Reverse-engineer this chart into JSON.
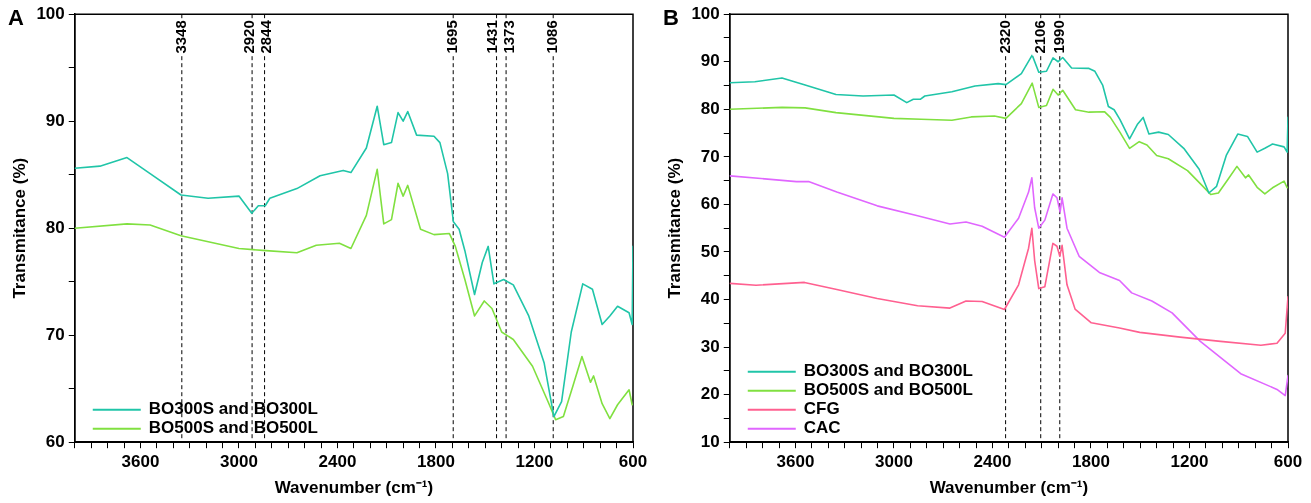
{
  "chart_data": [
    {
      "type": "line",
      "title": "A",
      "xlabel": "Wavenumber (cm⁻¹)",
      "ylabel": "Transmitance (%)",
      "xlim": [
        4000,
        600
      ],
      "ylim": [
        60,
        100
      ],
      "xticks": [
        {
          "value": 4000,
          "label": null
        },
        {
          "value": 3900,
          "label": null
        },
        {
          "value": 3800,
          "label": null
        },
        {
          "value": 3700,
          "label": null
        },
        3600,
        {
          "value": 3500,
          "label": null
        },
        {
          "value": 3400,
          "label": null
        },
        {
          "value": 3300,
          "label": null
        },
        {
          "value": 3200,
          "label": null
        },
        {
          "value": 3100,
          "label": null
        },
        3000,
        {
          "value": 2900,
          "label": null
        },
        {
          "value": 2800,
          "label": null
        },
        {
          "value": 2700,
          "label": null
        },
        {
          "value": 2600,
          "label": null
        },
        {
          "value": 2500,
          "label": null
        },
        2400,
        {
          "value": 2300,
          "label": null
        },
        {
          "value": 2200,
          "label": null
        },
        {
          "value": 2100,
          "label": null
        },
        {
          "value": 2000,
          "label": null
        },
        {
          "value": 1900,
          "label": null
        },
        1800,
        {
          "value": 1700,
          "label": null
        },
        {
          "value": 1600,
          "label": null
        },
        {
          "value": 1500,
          "label": null
        },
        {
          "value": 1400,
          "label": null
        },
        {
          "value": 1300,
          "label": null
        },
        1200,
        {
          "value": 1100,
          "label": null
        },
        {
          "value": 1000,
          "label": null
        },
        {
          "value": 900,
          "label": null
        },
        {
          "value": 800,
          "label": null
        },
        {
          "value": 700,
          "label": null
        },
        600
      ],
      "yticks": [
        60,
        {
          "value": 65,
          "label": null
        },
        70,
        {
          "value": 75,
          "label": null
        },
        80,
        {
          "value": 85,
          "label": null
        },
        90,
        {
          "value": 95,
          "label": null
        },
        100
      ],
      "grid": false,
      "legend": "bottom left",
      "marker": "none",
      "line_style": "solid",
      "series": [
        {
          "name": "BO300S and BO300L",
          "color": "#20c5a8",
          "x": [
            4000,
            3847,
            3682,
            3541,
            3353,
            3188,
            3000,
            2922,
            2882,
            2840,
            2812,
            2647,
            2506,
            2365,
            2318,
            2224,
            2158,
            2118,
            2071,
            2031,
            2000,
            1972,
            1918,
            1812,
            1776,
            1729,
            1694,
            1659,
            1624,
            1565,
            1518,
            1482,
            1447,
            1388,
            1329,
            1235,
            1141,
            1082,
            1035,
            976,
            906,
            847,
            788,
            741,
            694,
            624,
            605,
            600
          ],
          "values": [
            85.6,
            85.8,
            86.6,
            85.1,
            83.1,
            82.8,
            83.0,
            81.4,
            82.1,
            82.1,
            82.8,
            83.7,
            84.9,
            85.4,
            85.2,
            87.5,
            91.4,
            87.8,
            88.0,
            90.8,
            90.0,
            90.9,
            88.7,
            88.6,
            88.0,
            85.1,
            80.6,
            79.9,
            77.9,
            73.8,
            76.8,
            78.3,
            74.8,
            75.2,
            74.7,
            71.8,
            67.4,
            62.4,
            63.8,
            70.3,
            74.8,
            74.3,
            71.0,
            71.8,
            72.7,
            72.1,
            71.0,
            78.3
          ]
        },
        {
          "name": "BO500S and BO500L",
          "color": "#80e040",
          "x": [
            4000,
            3682,
            3541,
            3353,
            3000,
            2835,
            2647,
            2529,
            2388,
            2318,
            2224,
            2158,
            2118,
            2071,
            2031,
            2000,
            1972,
            1894,
            1812,
            1718,
            1682,
            1624,
            1565,
            1506,
            1459,
            1400,
            1329,
            1212,
            1118,
            1071,
            1024,
            965,
            911,
            859,
            840,
            788,
            741,
            694,
            624,
            605
          ],
          "values": [
            80.0,
            80.4,
            80.3,
            79.3,
            78.1,
            77.9,
            77.7,
            78.4,
            78.6,
            78.1,
            81.2,
            85.5,
            80.4,
            80.8,
            84.2,
            83.0,
            84.0,
            79.9,
            79.4,
            79.5,
            78.3,
            75.2,
            71.8,
            73.2,
            72.5,
            70.3,
            69.6,
            67.1,
            63.8,
            62.1,
            62.4,
            65.3,
            68.0,
            65.6,
            66.2,
            63.6,
            62.2,
            63.5,
            64.9,
            63.5
          ]
        }
      ],
      "ref_lines": [
        {
          "axis": "x",
          "value": 3348,
          "label": "3348",
          "color": "#000000",
          "line_style": "dashed"
        },
        {
          "axis": "x",
          "value": 2920,
          "label": "2920",
          "color": "#000000",
          "line_style": "dashed"
        },
        {
          "axis": "x",
          "value": 2844,
          "label": "2844",
          "color": "#000000",
          "line_style": "dashed"
        },
        {
          "axis": "x",
          "value": 1695,
          "label": "1695",
          "color": "#000000",
          "line_style": "dashed"
        },
        {
          "axis": "x",
          "value": 1431,
          "label": "1431",
          "color": "#000000",
          "line_style": "dashed"
        },
        {
          "axis": "x",
          "value": 1373,
          "label": "1373",
          "color": "#000000",
          "line_style": "dashed"
        },
        {
          "axis": "x",
          "value": 1086,
          "label": "1086",
          "color": "#000000",
          "line_style": "dashed"
        }
      ]
    },
    {
      "type": "line",
      "title": "B",
      "xlabel": "Wavenumber (cm⁻¹)",
      "ylabel": "Transmitance (%)",
      "xlim": [
        4000,
        600
      ],
      "ylim": [
        10,
        100
      ],
      "xticks": [
        {
          "value": 4000,
          "label": null
        },
        {
          "value": 3900,
          "label": null
        },
        {
          "value": 3800,
          "label": null
        },
        {
          "value": 3700,
          "label": null
        },
        3600,
        {
          "value": 3500,
          "label": null
        },
        {
          "value": 3400,
          "label": null
        },
        {
          "value": 3300,
          "label": null
        },
        {
          "value": 3200,
          "label": null
        },
        {
          "value": 3100,
          "label": null
        },
        3000,
        {
          "value": 2900,
          "label": null
        },
        {
          "value": 2800,
          "label": null
        },
        {
          "value": 2700,
          "label": null
        },
        {
          "value": 2600,
          "label": null
        },
        {
          "value": 2500,
          "label": null
        },
        2400,
        {
          "value": 2300,
          "label": null
        },
        {
          "value": 2200,
          "label": null
        },
        {
          "value": 2100,
          "label": null
        },
        {
          "value": 2000,
          "label": null
        },
        {
          "value": 1900,
          "label": null
        },
        1800,
        {
          "value": 1700,
          "label": null
        },
        {
          "value": 1600,
          "label": null
        },
        {
          "value": 1500,
          "label": null
        },
        {
          "value": 1400,
          "label": null
        },
        {
          "value": 1300,
          "label": null
        },
        1200,
        {
          "value": 1100,
          "label": null
        },
        {
          "value": 1000,
          "label": null
        },
        {
          "value": 900,
          "label": null
        },
        {
          "value": 800,
          "label": null
        },
        {
          "value": 700,
          "label": null
        },
        600
      ],
      "yticks": [
        10,
        {
          "value": 15,
          "label": null
        },
        20,
        {
          "value": 25,
          "label": null
        },
        30,
        {
          "value": 35,
          "label": null
        },
        40,
        {
          "value": 45,
          "label": null
        },
        50,
        {
          "value": 55,
          "label": null
        },
        60,
        {
          "value": 65,
          "label": null
        },
        70,
        {
          "value": 75,
          "label": null
        },
        80,
        {
          "value": 85,
          "label": null
        },
        90,
        {
          "value": 95,
          "label": null
        },
        100
      ],
      "grid": false,
      "legend": "bottom left",
      "marker": "none",
      "line_style": "solid",
      "series": [
        {
          "name": "BO300S and BO300L",
          "color": "#20c5a8",
          "x": [
            4000,
            3847,
            3682,
            3541,
            3353,
            3188,
            3000,
            2922,
            2882,
            2840,
            2812,
            2647,
            2506,
            2365,
            2318,
            2224,
            2158,
            2118,
            2071,
            2031,
            2000,
            1972,
            1918,
            1812,
            1776,
            1729,
            1694,
            1659,
            1624,
            1565,
            1518,
            1482,
            1447,
            1388,
            1329,
            1235,
            1141,
            1082,
            1035,
            976,
            906,
            847,
            788,
            741,
            694,
            624,
            605,
            600
          ],
          "values": [
            85.6,
            85.8,
            86.6,
            85.1,
            83.1,
            82.8,
            83.0,
            81.4,
            82.1,
            82.1,
            82.8,
            83.7,
            84.9,
            85.4,
            85.2,
            87.5,
            91.4,
            87.8,
            88.0,
            90.8,
            90.0,
            90.9,
            88.7,
            88.6,
            88.0,
            85.1,
            80.6,
            79.9,
            77.9,
            73.8,
            76.8,
            78.3,
            74.8,
            75.2,
            74.7,
            71.8,
            67.4,
            62.4,
            63.8,
            70.3,
            74.8,
            74.3,
            71.0,
            71.8,
            72.7,
            72.1,
            71.0,
            78.3
          ]
        },
        {
          "name": "BO500S and BO500L",
          "color": "#80e040",
          "x": [
            4000,
            3682,
            3541,
            3353,
            3000,
            2835,
            2647,
            2529,
            2388,
            2318,
            2224,
            2158,
            2118,
            2071,
            2031,
            2000,
            1972,
            1894,
            1812,
            1718,
            1682,
            1624,
            1565,
            1506,
            1459,
            1400,
            1329,
            1212,
            1118,
            1071,
            1024,
            965,
            911,
            859,
            840,
            788,
            741,
            694,
            624,
            605
          ],
          "values": [
            80.0,
            80.4,
            80.3,
            79.3,
            78.1,
            77.9,
            77.7,
            78.4,
            78.6,
            78.1,
            81.2,
            85.5,
            80.4,
            80.8,
            84.2,
            83.0,
            84.0,
            79.9,
            79.4,
            79.5,
            78.3,
            75.2,
            71.8,
            73.2,
            72.5,
            70.3,
            69.6,
            67.1,
            63.8,
            62.1,
            62.4,
            65.3,
            68.0,
            65.6,
            66.2,
            63.6,
            62.2,
            63.5,
            64.9,
            63.5
          ]
        },
        {
          "name": "CFG",
          "color": "#ff6090",
          "x": [
            4000,
            3840,
            3545,
            3348,
            3102,
            2856,
            2659,
            2561,
            2463,
            2327,
            2241,
            2180,
            2160,
            2143,
            2118,
            2081,
            2032,
            2007,
            1990,
            1976,
            1946,
            1897,
            1798,
            1626,
            1503,
            1257,
            1011,
            765,
            667,
            617,
            600
          ],
          "values": [
            43.4,
            43.0,
            43.6,
            42.1,
            40.2,
            38.7,
            38.2,
            39.7,
            39.6,
            37.9,
            43.1,
            50.8,
            55.0,
            48.2,
            42.3,
            42.7,
            51.8,
            51.2,
            49.1,
            51.4,
            43.1,
            38.0,
            35.1,
            34.0,
            33.1,
            32.1,
            31.2,
            30.4,
            30.8,
            32.9,
            40.6
          ]
        },
        {
          "name": "CAC",
          "color": "#e066ff",
          "x": [
            4000,
            3594,
            3520,
            3348,
            3102,
            2856,
            2659,
            2561,
            2463,
            2327,
            2241,
            2180,
            2160,
            2143,
            2118,
            2081,
            2032,
            2007,
            1988,
            1976,
            1946,
            1872,
            1749,
            1626,
            1552,
            1429,
            1306,
            1134,
            888,
            667,
            617,
            600
          ],
          "values": [
            66.0,
            64.8,
            64.8,
            62.6,
            59.7,
            57.6,
            55.9,
            56.3,
            55.4,
            53.1,
            57.1,
            62.6,
            65.6,
            59.3,
            55.0,
            56.7,
            62.2,
            61.4,
            58.4,
            61.4,
            55.0,
            49.1,
            45.7,
            44.0,
            41.4,
            39.7,
            37.2,
            31.2,
            24.4,
            21.1,
            19.8,
            24.0
          ]
        }
      ],
      "ref_lines": [
        {
          "axis": "x",
          "value": 2320,
          "label": "2320",
          "color": "#000000",
          "line_style": "dashed"
        },
        {
          "axis": "x",
          "value": 2106,
          "label": "2106",
          "color": "#000000",
          "line_style": "dashed"
        },
        {
          "axis": "x",
          "value": 1990,
          "label": "1990",
          "color": "#000000",
          "line_style": "dashed"
        }
      ]
    }
  ]
}
